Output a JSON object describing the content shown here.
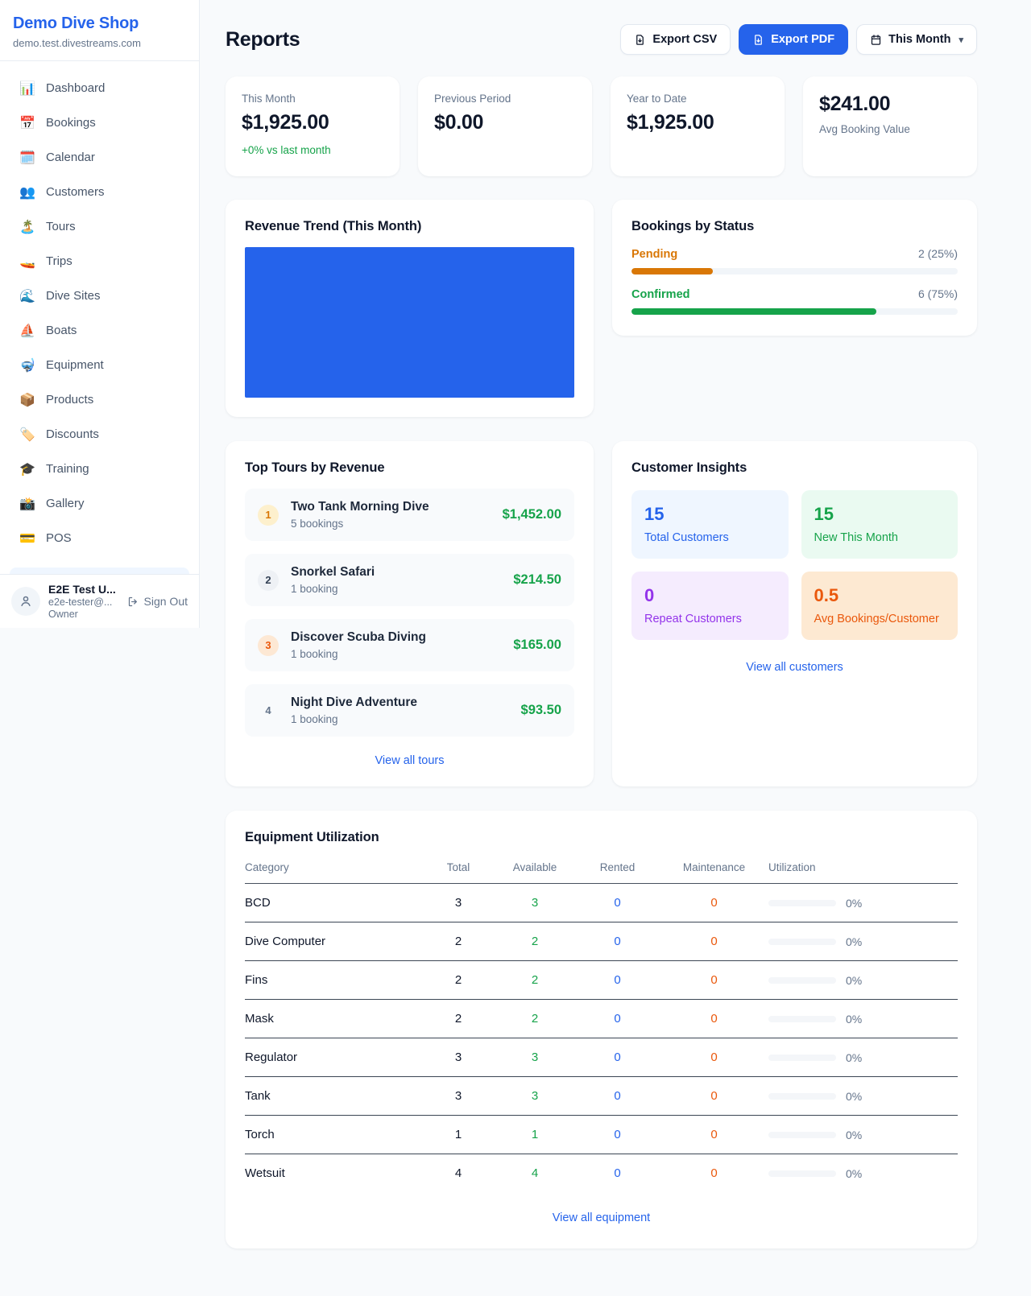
{
  "colors": {
    "accent": "#2563eb",
    "green": "#16a34a",
    "pending_orange": "#d97706",
    "maintenance_orange": "#ea580c",
    "purple": "#9333ea"
  },
  "sidebar": {
    "shop_name": "Demo Dive Shop",
    "domain": "demo.test.divestreams.com",
    "items": [
      {
        "icon": "📊",
        "label": "Dashboard"
      },
      {
        "icon": "📅",
        "label": "Bookings"
      },
      {
        "icon": "🗓️",
        "label": "Calendar"
      },
      {
        "icon": "👥",
        "label": "Customers"
      },
      {
        "icon": "🏝️",
        "label": "Tours"
      },
      {
        "icon": "🚤",
        "label": "Trips"
      },
      {
        "icon": "🌊",
        "label": "Dive Sites"
      },
      {
        "icon": "⛵",
        "label": "Boats"
      },
      {
        "icon": "🤿",
        "label": "Equipment"
      },
      {
        "icon": "📦",
        "label": "Products"
      },
      {
        "icon": "🏷️",
        "label": "Discounts"
      },
      {
        "icon": "🎓",
        "label": "Training"
      },
      {
        "icon": "📸",
        "label": "Gallery"
      },
      {
        "icon": "💳",
        "label": "POS"
      }
    ],
    "user": {
      "name": "E2E Test U...",
      "email": "e2e-tester@...",
      "role": "Owner",
      "sign_out_label": "Sign Out"
    }
  },
  "header": {
    "title": "Reports",
    "export_csv_label": "Export CSV",
    "export_pdf_label": "Export PDF",
    "period_label": "This Month"
  },
  "stats": [
    {
      "label": "This Month",
      "value": "$1,925.00",
      "delta": "+0% vs last month"
    },
    {
      "label": "Previous Period",
      "value": "$0.00"
    },
    {
      "label": "Year to Date",
      "value": "$1,925.00"
    },
    {
      "label": "Avg Booking Value",
      "value": "$241.00"
    }
  ],
  "revenue_trend": {
    "title": "Revenue Trend (This Month)",
    "bar_color": "#2563eb"
  },
  "bookings_by_status": {
    "title": "Bookings by Status",
    "rows": [
      {
        "label": "Pending",
        "count_text": "2 (25%)",
        "pct": 25,
        "color": "#d97706"
      },
      {
        "label": "Confirmed",
        "count_text": "6 (75%)",
        "pct": 75,
        "color": "#16a34a"
      }
    ]
  },
  "top_tours": {
    "title": "Top Tours by Revenue",
    "items": [
      {
        "rank": "1",
        "name": "Two Tank Morning Dive",
        "bookings": "5 bookings",
        "amount": "$1,452.00"
      },
      {
        "rank": "2",
        "name": "Snorkel Safari",
        "bookings": "1 booking",
        "amount": "$214.50"
      },
      {
        "rank": "3",
        "name": "Discover Scuba Diving",
        "bookings": "1 booking",
        "amount": "$165.00"
      },
      {
        "rank": "4",
        "name": "Night Dive Adventure",
        "bookings": "1 booking",
        "amount": "$93.50"
      }
    ],
    "view_all_label": "View all tours"
  },
  "customer_insights": {
    "title": "Customer Insights",
    "tiles": [
      {
        "value": "15",
        "label": "Total Customers"
      },
      {
        "value": "15",
        "label": "New This Month"
      },
      {
        "value": "0",
        "label": "Repeat Customers"
      },
      {
        "value": "0.5",
        "label": "Avg Bookings/Customer"
      }
    ],
    "view_all_label": "View all customers"
  },
  "equipment": {
    "title": "Equipment Utilization",
    "columns": [
      "Category",
      "Total",
      "Available",
      "Rented",
      "Maintenance",
      "Utilization"
    ],
    "rows": [
      {
        "category": "BCD",
        "total": "3",
        "available": "3",
        "rented": "0",
        "maintenance": "0",
        "utilization_label": "0%",
        "utilization_pct": 0
      },
      {
        "category": "Dive Computer",
        "total": "2",
        "available": "2",
        "rented": "0",
        "maintenance": "0",
        "utilization_label": "0%",
        "utilization_pct": 0
      },
      {
        "category": "Fins",
        "total": "2",
        "available": "2",
        "rented": "0",
        "maintenance": "0",
        "utilization_label": "0%",
        "utilization_pct": 0
      },
      {
        "category": "Mask",
        "total": "2",
        "available": "2",
        "rented": "0",
        "maintenance": "0",
        "utilization_label": "0%",
        "utilization_pct": 0
      },
      {
        "category": "Regulator",
        "total": "3",
        "available": "3",
        "rented": "0",
        "maintenance": "0",
        "utilization_label": "0%",
        "utilization_pct": 0
      },
      {
        "category": "Tank",
        "total": "3",
        "available": "3",
        "rented": "0",
        "maintenance": "0",
        "utilization_label": "0%",
        "utilization_pct": 0
      },
      {
        "category": "Torch",
        "total": "1",
        "available": "1",
        "rented": "0",
        "maintenance": "0",
        "utilization_label": "0%",
        "utilization_pct": 0
      },
      {
        "category": "Wetsuit",
        "total": "4",
        "available": "4",
        "rented": "0",
        "maintenance": "0",
        "utilization_label": "0%",
        "utilization_pct": 0
      }
    ],
    "view_all_label": "View all equipment"
  }
}
